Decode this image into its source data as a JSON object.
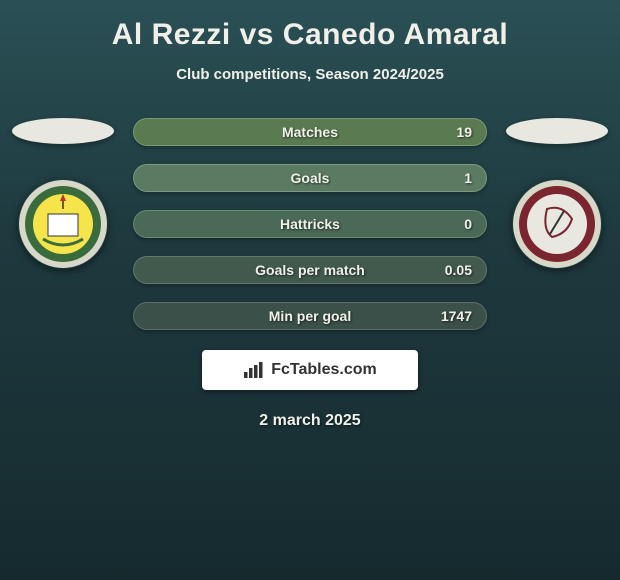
{
  "title": "Al Rezzi vs Canedo Amaral",
  "subtitle": "Club competitions, Season 2024/2025",
  "date": "2 march 2025",
  "branding": "FcTables.com",
  "background_gradient": [
    "#2a5055",
    "#1e3a3f",
    "#162a2e"
  ],
  "text_color": "#f0f0e8",
  "left_ellipse_color": "#e8e8e0",
  "right_ellipse_color": "#e8e8e0",
  "left_club": {
    "name": "ittihad-kalba",
    "outer_color": "#d8d8c8",
    "ring_color": "#3a6b3d",
    "inner_color": "#f5e44a"
  },
  "right_club": {
    "name": "al-wahda",
    "outer_color": "#d8d8c8",
    "ring_color": "#7a2530",
    "inner_color": "#e8e8e0"
  },
  "stats": [
    {
      "label": "Matches",
      "value": "19",
      "fill_color": "#5a7a52",
      "border_color": "#7a9a72"
    },
    {
      "label": "Goals",
      "value": "1",
      "fill_color": "#5a7a62",
      "border_color": "#7a9a82"
    },
    {
      "label": "Hattricks",
      "value": "0",
      "fill_color": "#4a6a55",
      "border_color": "#6a8a75"
    },
    {
      "label": "Goals per match",
      "value": "0.05",
      "fill_color": "#425a4d",
      "border_color": "#627a6d"
    },
    {
      "label": "Min per goal",
      "value": "1747",
      "fill_color": "#3a5048",
      "border_color": "#5a7068"
    }
  ],
  "stat_bar": {
    "height": 28,
    "border_radius": 14,
    "label_fontsize": 14,
    "value_fontsize": 14
  }
}
